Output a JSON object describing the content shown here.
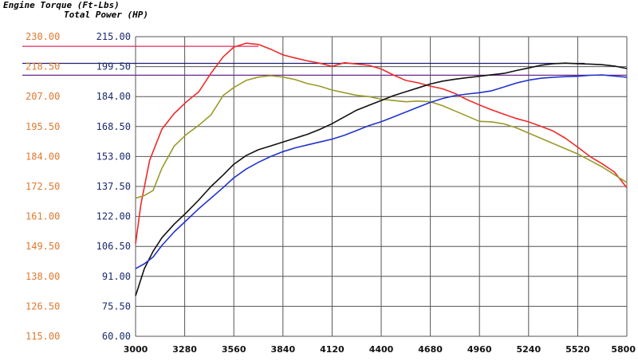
{
  "chart_data": {
    "type": "line",
    "title_torque": "Engine Torque (Ft-Lbs)",
    "title_power": "Total Power (HP)",
    "colors": {
      "torque_axis": "#e07a30",
      "power_axis": "#1a2a6e",
      "red": "#ee2a2a",
      "olive": "#9a9a2a",
      "black": "#111111",
      "blue": "#2233cc",
      "ref_red": "#e4285a",
      "ref_navy": "#202070",
      "ref_purple": "#6a2a8a",
      "grid": "#555555"
    },
    "x_ticks": [
      "3000",
      "3280",
      "3560",
      "3840",
      "4120",
      "4400",
      "4680",
      "4960",
      "5240",
      "5520",
      "5800"
    ],
    "xlim": [
      3000,
      5800
    ],
    "torque_ticks": [
      "230.00",
      "218.50",
      "207.00",
      "195.50",
      "184.00",
      "172.50",
      "161.00",
      "149.50",
      "138.00",
      "126.50",
      "115.00"
    ],
    "torque_lim": [
      115,
      230
    ],
    "power_ticks": [
      "215.00",
      "199.50",
      "184.00",
      "168.50",
      "153.00",
      "137.50",
      "122.00",
      "106.50",
      "91.00",
      "75.50",
      "60.00"
    ],
    "power_lim": [
      60,
      215
    ],
    "reference_lines": [
      {
        "axis": "torque",
        "value": 226.3,
        "x_end": 3700,
        "color_key": "ref_red"
      },
      {
        "axis": "power",
        "value": 201.2,
        "x_end": 5560,
        "color_key": "ref_navy"
      },
      {
        "axis": "torque",
        "value": 215.2,
        "x_end": 5800,
        "color_key": "ref_purple"
      }
    ],
    "series": [
      {
        "color_key": "red",
        "axis": "torque",
        "x": [
          3000,
          3030,
          3080,
          3150,
          3220,
          3290,
          3360,
          3430,
          3500,
          3560,
          3630,
          3700,
          3770,
          3840,
          3910,
          3980,
          4050,
          4120,
          4190,
          4260,
          4330,
          4400,
          4470,
          4540,
          4610,
          4680,
          4750,
          4820,
          4890,
          4960,
          5030,
          5100,
          5170,
          5240,
          5310,
          5380,
          5450,
          5520,
          5590,
          5660,
          5730,
          5800
        ],
        "values": [
          150.5,
          165.5,
          182.5,
          194.5,
          200.5,
          205.0,
          208.8,
          216.0,
          222.3,
          226.0,
          227.5,
          227.0,
          225.2,
          223.0,
          221.8,
          220.7,
          219.8,
          218.6,
          220.0,
          219.5,
          219.0,
          217.6,
          215.3,
          213.2,
          212.3,
          211.0,
          210.0,
          208.2,
          205.8,
          203.8,
          201.9,
          200.2,
          198.6,
          197.3,
          195.6,
          193.8,
          191.0,
          187.6,
          184.0,
          181.2,
          178.0,
          172.0
        ]
      },
      {
        "color_key": "olive",
        "axis": "torque",
        "x": [
          3000,
          3050,
          3100,
          3150,
          3220,
          3290,
          3360,
          3430,
          3500,
          3560,
          3630,
          3700,
          3770,
          3840,
          3910,
          3980,
          4050,
          4120,
          4190,
          4260,
          4330,
          4400,
          4470,
          4540,
          4610,
          4680,
          4750,
          4820,
          4890,
          4960,
          5030,
          5100,
          5170,
          5240,
          5310,
          5380,
          5450,
          5520,
          5590,
          5660,
          5730,
          5800
        ],
        "values": [
          168.0,
          169.0,
          171.0,
          179.5,
          188.0,
          192.5,
          196.0,
          200.0,
          207.5,
          210.5,
          213.2,
          214.5,
          215.0,
          214.5,
          213.5,
          212.0,
          211.0,
          209.5,
          208.5,
          207.5,
          207.0,
          206.0,
          205.5,
          205.0,
          205.3,
          205.0,
          203.5,
          201.5,
          199.5,
          197.5,
          197.3,
          196.5,
          195.0,
          193.0,
          191.0,
          189.0,
          187.0,
          185.0,
          182.5,
          180.0,
          177.0,
          174.0
        ]
      },
      {
        "color_key": "black",
        "axis": "power",
        "x": [
          3000,
          3050,
          3100,
          3150,
          3220,
          3290,
          3360,
          3430,
          3500,
          3560,
          3630,
          3700,
          3770,
          3840,
          3910,
          3980,
          4050,
          4120,
          4190,
          4260,
          4330,
          4400,
          4470,
          4540,
          4610,
          4680,
          4750,
          4820,
          4890,
          4960,
          5030,
          5100,
          5170,
          5240,
          5310,
          5380,
          5450,
          5520,
          5590,
          5660,
          5730,
          5800
        ],
        "values": [
          81.0,
          95.0,
          104.0,
          111.0,
          118.0,
          124.0,
          130.5,
          137.5,
          143.5,
          149.0,
          153.5,
          156.5,
          158.5,
          160.5,
          162.5,
          164.5,
          167.0,
          170.0,
          173.5,
          177.0,
          179.5,
          182.0,
          184.5,
          186.5,
          188.5,
          190.5,
          192.0,
          193.0,
          193.8,
          194.5,
          195.3,
          196.0,
          197.5,
          198.8,
          200.2,
          201.0,
          201.3,
          201.0,
          200.8,
          200.5,
          199.8,
          198.5
        ]
      },
      {
        "color_key": "blue",
        "axis": "power",
        "x": [
          3000,
          3050,
          3100,
          3150,
          3220,
          3290,
          3360,
          3430,
          3500,
          3560,
          3630,
          3700,
          3770,
          3840,
          3910,
          3980,
          4050,
          4120,
          4190,
          4260,
          4330,
          4400,
          4470,
          4540,
          4610,
          4680,
          4750,
          4820,
          4890,
          4960,
          5030,
          5100,
          5170,
          5240,
          5310,
          5380,
          5450,
          5520,
          5590,
          5660,
          5730,
          5800
        ],
        "values": [
          95.0,
          97.5,
          101.0,
          107.0,
          114.0,
          120.0,
          126.0,
          131.5,
          137.0,
          142.0,
          146.5,
          150.0,
          153.0,
          155.5,
          157.5,
          159.0,
          160.5,
          162.0,
          164.0,
          166.5,
          169.0,
          171.0,
          173.5,
          176.0,
          178.5,
          181.0,
          183.0,
          184.5,
          185.3,
          186.0,
          187.0,
          189.0,
          191.0,
          192.5,
          193.5,
          194.0,
          194.3,
          194.5,
          195.0,
          195.2,
          194.6,
          194.0
        ]
      }
    ]
  }
}
